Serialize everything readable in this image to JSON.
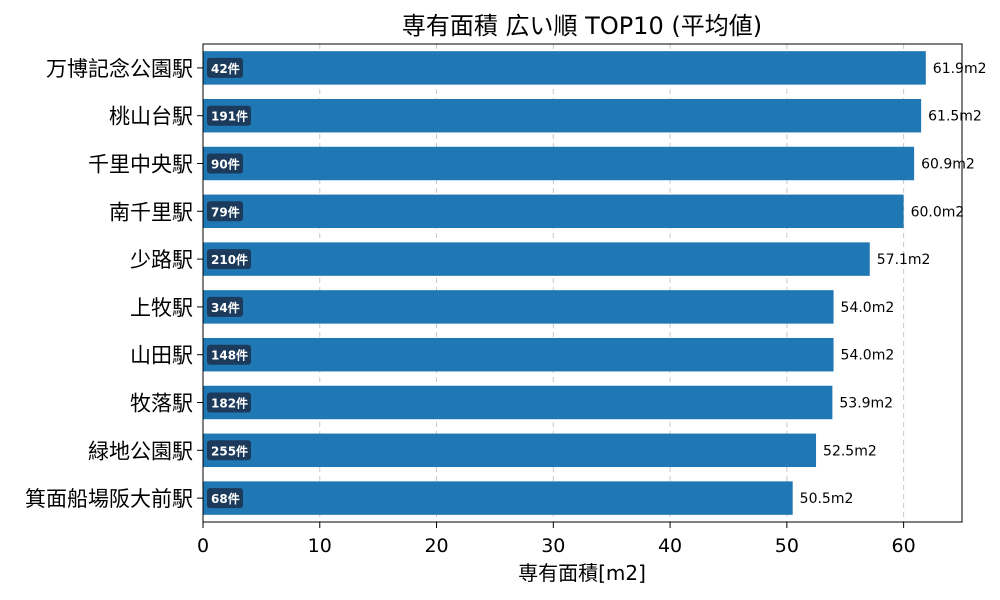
{
  "chart_data": {
    "type": "bar",
    "orientation": "horizontal",
    "title": "専有面積 広い順 TOP10 (平均値)",
    "xlabel": "専有面積[m2]",
    "ylabel": "",
    "xlim": [
      0,
      65
    ],
    "xticks": [
      0,
      10,
      20,
      30,
      40,
      50,
      60
    ],
    "grid": "x, dashed",
    "bar_color": "#1f77b4",
    "badge_color": "#1b3a5c",
    "categories": [
      "万博記念公園駅",
      "桃山台駅",
      "千里中央駅",
      "南千里駅",
      "少路駅",
      "上牧駅",
      "山田駅",
      "牧落駅",
      "緑地公園駅",
      "箕面船場阪大前駅"
    ],
    "values": [
      61.9,
      61.5,
      60.9,
      60.0,
      57.1,
      54.0,
      54.0,
      53.9,
      52.5,
      50.5
    ],
    "value_labels": [
      "61.9m2",
      "61.5m2",
      "60.9m2",
      "60.0m2",
      "57.1m2",
      "54.0m2",
      "54.0m2",
      "53.9m2",
      "52.5m2",
      "50.5m2"
    ],
    "counts": [
      "42件",
      "191件",
      "90件",
      "79件",
      "210件",
      "34件",
      "148件",
      "182件",
      "255件",
      "68件"
    ]
  }
}
